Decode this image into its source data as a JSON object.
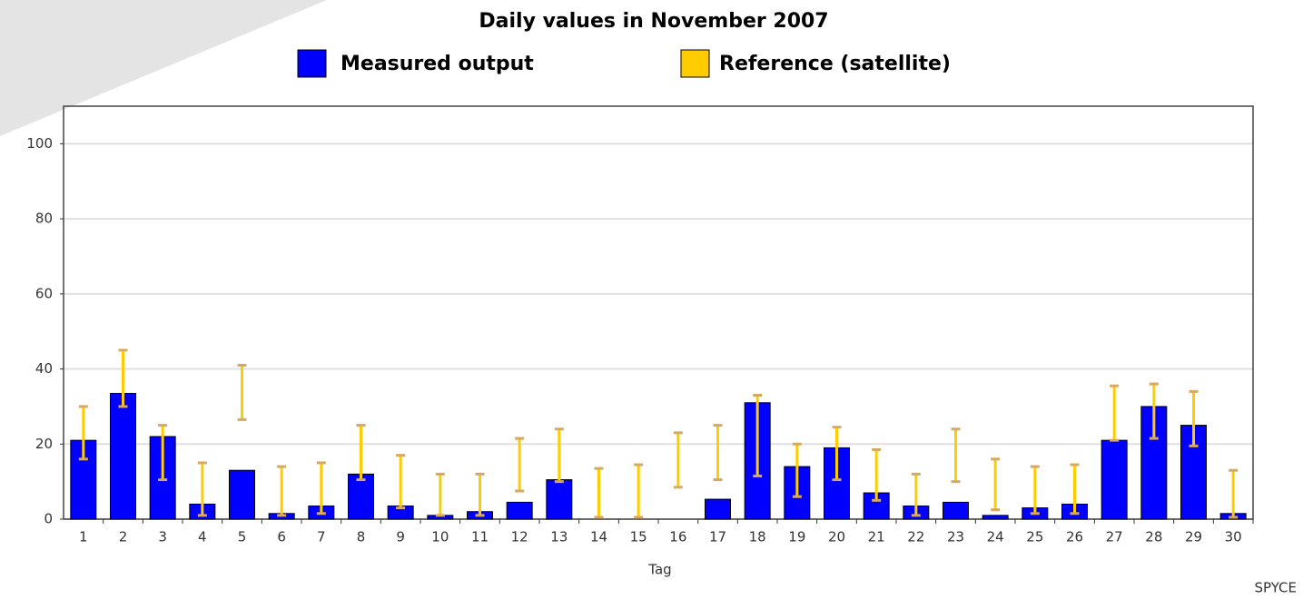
{
  "chart_data": {
    "type": "bar",
    "title": "Daily values in November 2007",
    "x_label": "Tag",
    "watermark": "SPYCE",
    "categories": [
      "1",
      "2",
      "3",
      "4",
      "5",
      "6",
      "7",
      "8",
      "9",
      "10",
      "11",
      "12",
      "13",
      "14",
      "15",
      "16",
      "17",
      "18",
      "19",
      "20",
      "21",
      "22",
      "23",
      "24",
      "25",
      "26",
      "27",
      "28",
      "29",
      "30"
    ],
    "series": [
      {
        "name": "Measured output",
        "color": "#0000ff",
        "values": [
          21,
          33.5,
          22,
          4,
          13,
          1.5,
          3.5,
          12,
          3.5,
          1,
          2,
          4.5,
          10.5,
          0,
          0,
          0,
          5.3,
          31,
          14,
          19,
          7,
          3.5,
          4.5,
          1,
          3,
          4,
          21,
          30,
          25,
          1.5
        ]
      },
      {
        "name": "Reference (satellite)",
        "color": "#ffcc00",
        "low": [
          16,
          30,
          10.5,
          1,
          26.5,
          1,
          1.5,
          10.5,
          3,
          1,
          1,
          7.5,
          10,
          0.5,
          0.5,
          8.5,
          10.5,
          11.5,
          6,
          10.5,
          5,
          1,
          10,
          2.5,
          1.5,
          1.5,
          21,
          21.5,
          19.5,
          0.5
        ],
        "high": [
          30,
          45,
          25,
          15,
          41,
          14,
          15,
          25,
          17,
          12,
          12,
          21.5,
          24,
          13.5,
          14.5,
          23,
          25,
          33,
          20,
          24.5,
          18.5,
          12,
          24,
          16,
          14,
          14.5,
          35.5,
          36,
          34,
          13
        ]
      }
    ],
    "ylim": [
      0,
      110
    ],
    "yticks": [
      0,
      20,
      40,
      60,
      80,
      100
    ],
    "grid": true
  }
}
